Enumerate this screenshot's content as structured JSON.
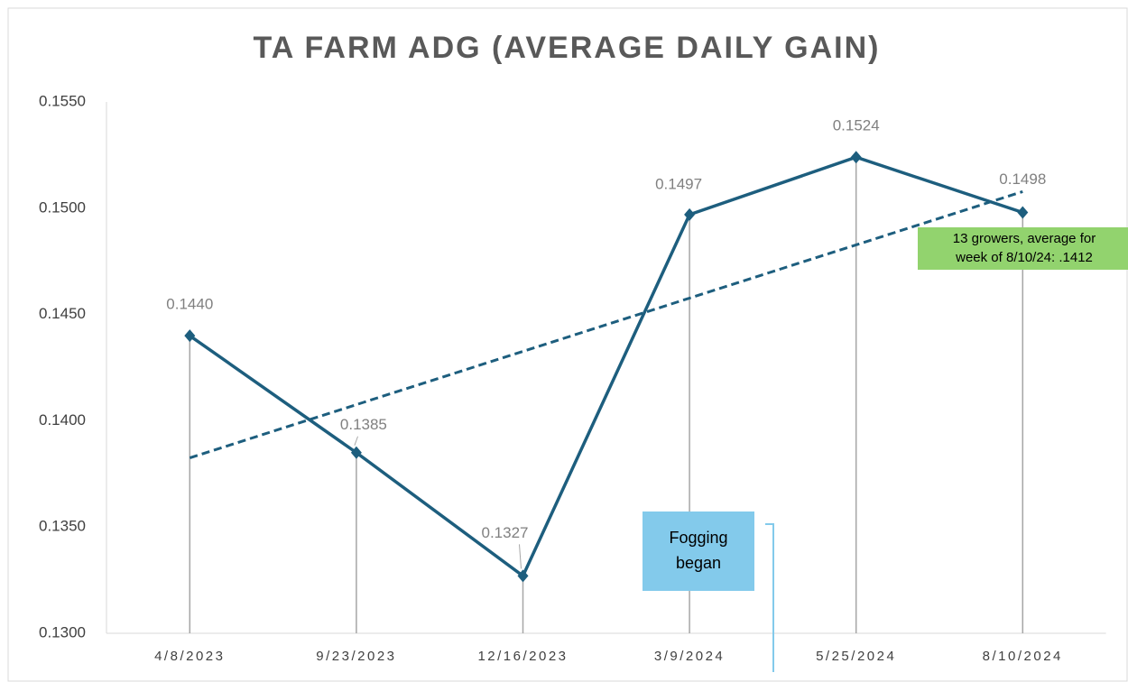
{
  "chart_data": {
    "type": "line",
    "title": "TA FARM ADG (AVERAGE DAILY GAIN)",
    "categories": [
      "4/8/2023",
      "9/23/2023",
      "12/16/2023",
      "3/9/2024",
      "5/25/2024",
      "8/10/2024"
    ],
    "series": [
      {
        "name": "ADG",
        "color": "#1d5e7e",
        "values": [
          0.144,
          0.1385,
          0.1327,
          0.1497,
          0.1524,
          0.1498
        ],
        "value_labels": [
          "0.1440",
          "0.1385",
          "0.1327",
          "0.1497",
          "0.1524",
          "0.1498"
        ]
      }
    ],
    "ylim": [
      0.13,
      0.155
    ],
    "yticks": [
      {
        "value": 0.13,
        "label": "0.1300"
      },
      {
        "value": 0.135,
        "label": "0.1350"
      },
      {
        "value": 0.14,
        "label": "0.1400"
      },
      {
        "value": 0.145,
        "label": "0.1450"
      },
      {
        "value": 0.15,
        "label": "0.1500"
      },
      {
        "value": 0.155,
        "label": "0.1550"
      }
    ],
    "trendline": true,
    "drop_lines": true,
    "annotations": [
      {
        "lines": [
          "13 growers, average for",
          "week of 8/10/24: .1412"
        ],
        "color": "#92d36e"
      },
      {
        "lines": [
          "Fogging",
          "began"
        ],
        "color": "#83caeb"
      }
    ]
  }
}
